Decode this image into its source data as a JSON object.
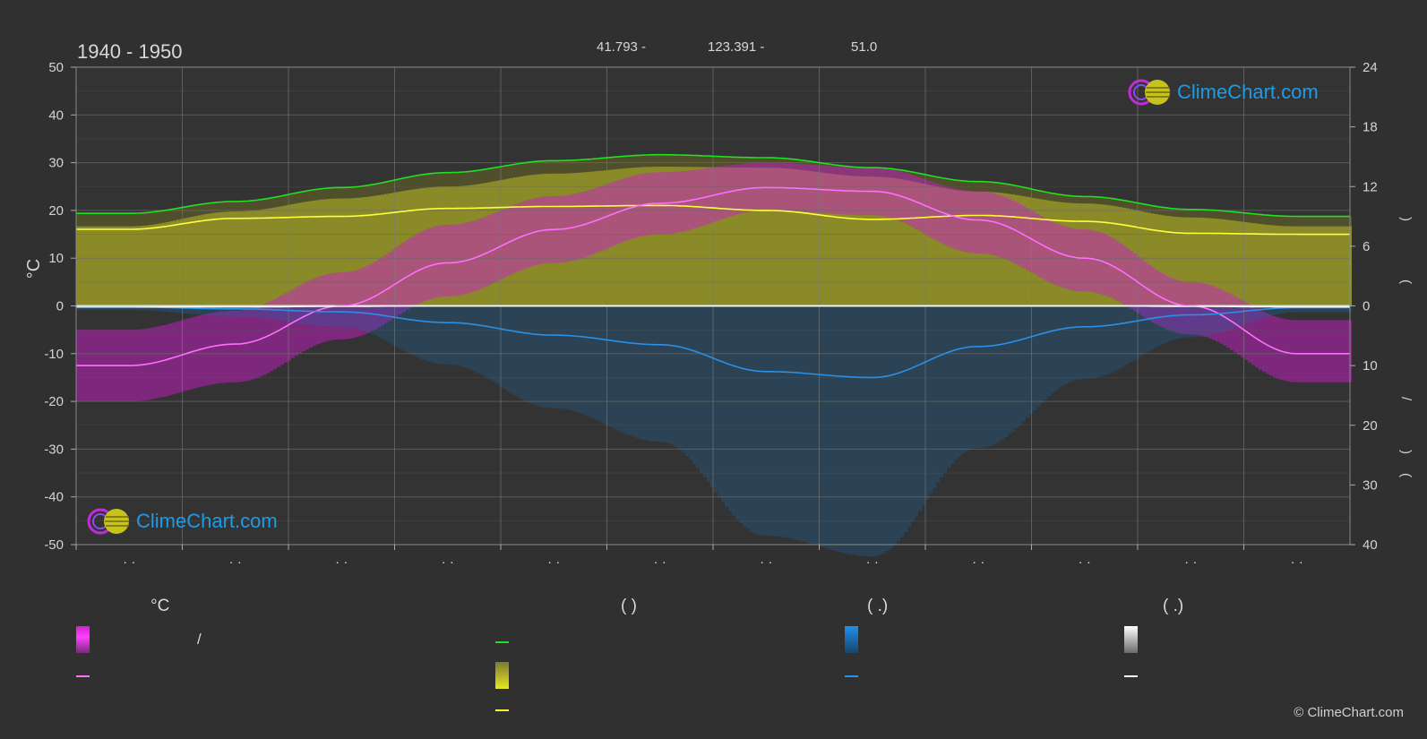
{
  "header": {
    "period": "1940 - 1950",
    "lat": "41.793 -",
    "lon": "123.391 -",
    "elev": "51.0"
  },
  "axes": {
    "left_label": "°C",
    "left_ticks": [
      "50",
      "40",
      "30",
      "20",
      "10",
      "0",
      "-10",
      "-20",
      "-30",
      "-40",
      "-50"
    ],
    "right_top_ticks": [
      "24",
      "18",
      "12",
      "6",
      "0"
    ],
    "right_bottom_ticks": [
      "10",
      "20",
      "30",
      "40"
    ],
    "right_label_glyphs": [
      ")",
      "(",
      "/",
      ")",
      "("
    ],
    "month_labels": [
      "· ·",
      "· ·",
      "· ·",
      "· ·",
      "· ·",
      "· ·",
      "· ·",
      "· ·",
      "· ·",
      "· ·",
      "· ·",
      "· ·"
    ]
  },
  "legend": {
    "col1_head": "°C",
    "col1_slash": "/",
    "col2_head": "(            )",
    "col3_head": "(    .)",
    "col4_head": "(    .)"
  },
  "logo": {
    "text": "ClimeChart.com"
  },
  "copyright": "© ClimeChart.com",
  "colors": {
    "background": "#303030",
    "temp_band": "#c81ec8",
    "temp_mean": "#ff6eff",
    "daylight": "#22e022",
    "sunshine": "#d6d61e",
    "sunshine_mean": "#ffff3c",
    "rain": "#1a6fb0",
    "rain_mean": "#2a90e8",
    "snow_mean": "#ffffff"
  },
  "chart_data": {
    "type": "area",
    "x": [
      "Jan",
      "Feb",
      "Mar",
      "Apr",
      "May",
      "Jun",
      "Jul",
      "Aug",
      "Sep",
      "Oct",
      "Nov",
      "Dec"
    ],
    "ylim": [
      -50,
      50
    ],
    "y2_top_range": [
      0,
      24
    ],
    "y2_bottom_range": [
      0,
      40
    ],
    "series": [
      {
        "key": "temp_mean",
        "axis": "left",
        "values": [
          -12.5,
          -8.0,
          0.0,
          9.0,
          16.0,
          21.5,
          24.8,
          24.0,
          18.0,
          10.0,
          0.0,
          -10.0
        ]
      },
      {
        "key": "temp_max_band",
        "axis": "left",
        "values": [
          -5,
          -1,
          7,
          17,
          23,
          28,
          30,
          29,
          24,
          16,
          5,
          -3
        ]
      },
      {
        "key": "temp_min_band",
        "axis": "left",
        "values": [
          -20,
          -16,
          -7,
          2,
          9,
          15,
          20,
          19,
          11,
          3,
          -6,
          -16
        ]
      },
      {
        "key": "daylight",
        "axis": "right_top",
        "values": [
          9.3,
          10.5,
          11.9,
          13.4,
          14.6,
          15.2,
          14.9,
          13.9,
          12.5,
          11.0,
          9.7,
          9.0
        ]
      },
      {
        "key": "sunshine",
        "axis": "right_top",
        "values": [
          7.7,
          8.8,
          9.0,
          9.8,
          10.0,
          10.1,
          9.6,
          8.7,
          9.1,
          8.5,
          7.3,
          7.2
        ]
      },
      {
        "key": "sunshine_max",
        "axis": "right_top",
        "values": [
          8.0,
          9.5,
          10.8,
          12.0,
          13.3,
          14.0,
          13.9,
          13.0,
          11.5,
          10.3,
          8.9,
          8.0
        ]
      },
      {
        "key": "rain_mean",
        "axis": "right_bottom",
        "values": [
          0.2,
          0.5,
          1.0,
          2.8,
          4.9,
          6.5,
          11.0,
          12.0,
          6.8,
          3.5,
          1.5,
          0.3
        ]
      },
      {
        "key": "snow_mean",
        "axis": "right_bottom",
        "values": [
          0.2,
          0.2,
          0.1,
          0.0,
          0.0,
          0.0,
          0.0,
          0.0,
          0.0,
          0.0,
          0.1,
          0.2
        ]
      }
    ]
  }
}
